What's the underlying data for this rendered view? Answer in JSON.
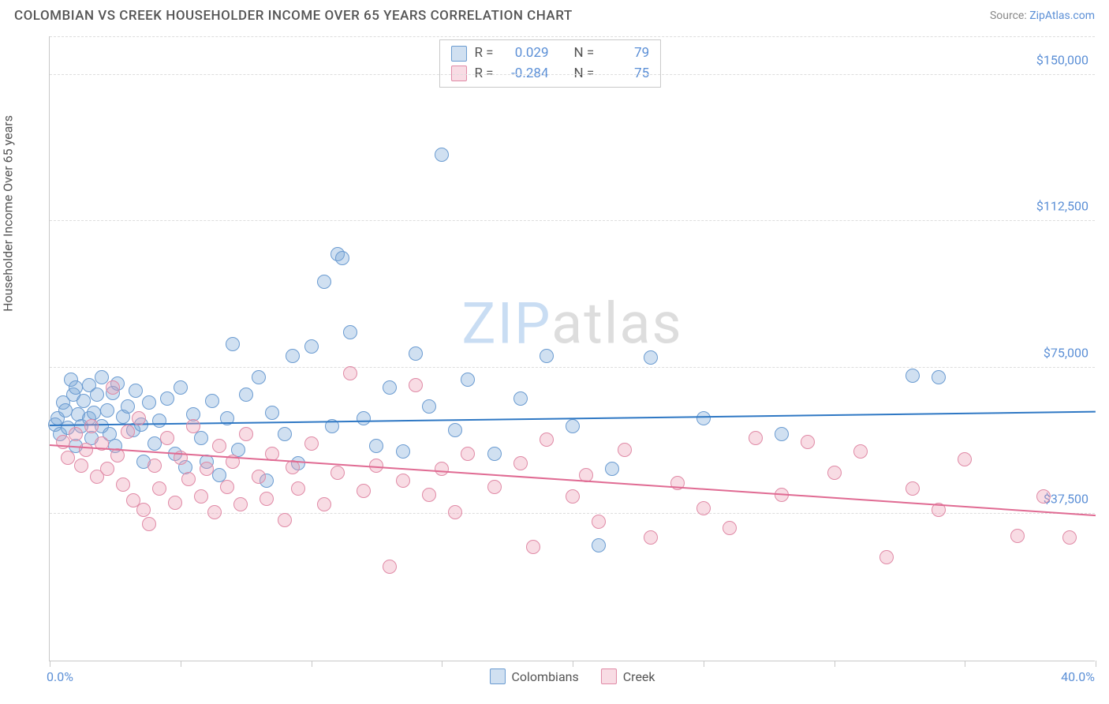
{
  "title": "COLOMBIAN VS CREEK HOUSEHOLDER INCOME OVER 65 YEARS CORRELATION CHART",
  "source_prefix": "Source: ",
  "source_link": "ZipAtlas.com",
  "ylabel": "Householder Income Over 65 years",
  "watermark_zip": "ZIP",
  "watermark_rest": "atlas",
  "chart": {
    "type": "scatter",
    "xlim": [
      0,
      40
    ],
    "ylim": [
      0,
      160000
    ],
    "x_unit": "%",
    "y_unit": "$",
    "ytick_values": [
      37500,
      75000,
      112500,
      150000
    ],
    "ytick_labels": [
      "$37,500",
      "$75,000",
      "$112,500",
      "$150,000"
    ],
    "xtick_values": [
      0,
      5,
      10,
      15,
      20,
      25,
      30,
      35,
      40
    ],
    "xlabel_min": "0.0%",
    "xlabel_max": "40.0%",
    "background_color": "#ffffff",
    "grid_color": "#dddddd",
    "axis_color": "#c8c8c8",
    "marker_radius": 9,
    "marker_stroke_width": 1.5,
    "series": [
      {
        "name": "Colombians",
        "fill": "rgba(120,165,216,0.35)",
        "stroke": "#6a9bd1",
        "trend_color": "#2f78c4",
        "trend": {
          "x0": 0,
          "y0": 60000,
          "x1": 40,
          "y1": 63500
        },
        "stats": {
          "R": "0.029",
          "N": "79"
        },
        "points": [
          [
            0.2,
            60500
          ],
          [
            0.3,
            62000
          ],
          [
            0.4,
            58000
          ],
          [
            0.5,
            66000
          ],
          [
            0.6,
            64000
          ],
          [
            0.7,
            59500
          ],
          [
            0.8,
            72000
          ],
          [
            0.9,
            68000
          ],
          [
            1.0,
            55000
          ],
          [
            1.0,
            70000
          ],
          [
            1.1,
            63000
          ],
          [
            1.2,
            60000
          ],
          [
            1.3,
            66500
          ],
          [
            1.5,
            62000
          ],
          [
            1.5,
            70500
          ],
          [
            1.6,
            57000
          ],
          [
            1.7,
            63500
          ],
          [
            1.8,
            68000
          ],
          [
            2.0,
            60000
          ],
          [
            2.0,
            72500
          ],
          [
            2.2,
            64000
          ],
          [
            2.3,
            58000
          ],
          [
            2.4,
            68500
          ],
          [
            2.5,
            55000
          ],
          [
            2.6,
            71000
          ],
          [
            2.8,
            62500
          ],
          [
            3.0,
            65000
          ],
          [
            3.2,
            59000
          ],
          [
            3.3,
            69000
          ],
          [
            3.5,
            60500
          ],
          [
            3.6,
            51000
          ],
          [
            3.8,
            66000
          ],
          [
            4.0,
            55500
          ],
          [
            4.2,
            61500
          ],
          [
            4.5,
            67000
          ],
          [
            4.8,
            53000
          ],
          [
            5.0,
            70000
          ],
          [
            5.2,
            49500
          ],
          [
            5.5,
            63000
          ],
          [
            5.8,
            57000
          ],
          [
            6.0,
            51000
          ],
          [
            6.2,
            66500
          ],
          [
            6.5,
            47500
          ],
          [
            6.8,
            62000
          ],
          [
            7.0,
            81000
          ],
          [
            7.2,
            54000
          ],
          [
            7.5,
            68000
          ],
          [
            8.0,
            72500
          ],
          [
            8.3,
            46000
          ],
          [
            8.5,
            63500
          ],
          [
            9.0,
            58000
          ],
          [
            9.3,
            78000
          ],
          [
            9.5,
            50500
          ],
          [
            10.0,
            80500
          ],
          [
            10.5,
            97000
          ],
          [
            10.8,
            60000
          ],
          [
            11.0,
            104000
          ],
          [
            11.2,
            103000
          ],
          [
            11.5,
            84000
          ],
          [
            12.0,
            62000
          ],
          [
            12.5,
            55000
          ],
          [
            13.0,
            70000
          ],
          [
            13.5,
            53500
          ],
          [
            14.0,
            78500
          ],
          [
            14.5,
            65000
          ],
          [
            15.0,
            129500
          ],
          [
            15.5,
            59000
          ],
          [
            16.0,
            72000
          ],
          [
            17.0,
            53000
          ],
          [
            18.0,
            67000
          ],
          [
            19.0,
            78000
          ],
          [
            20.0,
            60000
          ],
          [
            21.0,
            29500
          ],
          [
            21.5,
            49000
          ],
          [
            23.0,
            77500
          ],
          [
            25.0,
            62000
          ],
          [
            28.0,
            58000
          ],
          [
            33.0,
            73000
          ],
          [
            34.0,
            72500
          ]
        ]
      },
      {
        "name": "Creek",
        "fill": "rgba(236,154,178,0.35)",
        "stroke": "#e08aa6",
        "trend_color": "#e06b93",
        "trend": {
          "x0": 0,
          "y0": 55000,
          "x1": 40,
          "y1": 37000
        },
        "stats": {
          "R": "-0.284",
          "N": "75"
        },
        "points": [
          [
            0.5,
            56000
          ],
          [
            0.7,
            52000
          ],
          [
            1.0,
            58000
          ],
          [
            1.2,
            50000
          ],
          [
            1.4,
            54000
          ],
          [
            1.6,
            60000
          ],
          [
            1.8,
            47000
          ],
          [
            2.0,
            55500
          ],
          [
            2.2,
            49000
          ],
          [
            2.4,
            70000
          ],
          [
            2.6,
            52500
          ],
          [
            2.8,
            45000
          ],
          [
            3.0,
            58500
          ],
          [
            3.2,
            41000
          ],
          [
            3.4,
            62000
          ],
          [
            3.6,
            38500
          ],
          [
            3.8,
            35000
          ],
          [
            4.0,
            50000
          ],
          [
            4.2,
            44000
          ],
          [
            4.5,
            57000
          ],
          [
            4.8,
            40500
          ],
          [
            5.0,
            52000
          ],
          [
            5.3,
            46500
          ],
          [
            5.5,
            60000
          ],
          [
            5.8,
            42000
          ],
          [
            6.0,
            49000
          ],
          [
            6.3,
            38000
          ],
          [
            6.5,
            55000
          ],
          [
            6.8,
            44500
          ],
          [
            7.0,
            51000
          ],
          [
            7.3,
            40000
          ],
          [
            7.5,
            58000
          ],
          [
            8.0,
            47000
          ],
          [
            8.3,
            41500
          ],
          [
            8.5,
            53000
          ],
          [
            9.0,
            36000
          ],
          [
            9.3,
            49500
          ],
          [
            9.5,
            44000
          ],
          [
            10.0,
            55500
          ],
          [
            10.5,
            40000
          ],
          [
            11.0,
            48000
          ],
          [
            11.5,
            73500
          ],
          [
            12.0,
            43500
          ],
          [
            12.5,
            50000
          ],
          [
            13.0,
            24000
          ],
          [
            13.5,
            46000
          ],
          [
            14.0,
            70500
          ],
          [
            14.5,
            42500
          ],
          [
            15.0,
            49000
          ],
          [
            15.5,
            38000
          ],
          [
            16.0,
            53000
          ],
          [
            17.0,
            44500
          ],
          [
            18.0,
            50500
          ],
          [
            18.5,
            29000
          ],
          [
            19.0,
            56500
          ],
          [
            20.0,
            42000
          ],
          [
            20.5,
            47500
          ],
          [
            21.0,
            35500
          ],
          [
            22.0,
            54000
          ],
          [
            23.0,
            31500
          ],
          [
            24.0,
            45500
          ],
          [
            25.0,
            39000
          ],
          [
            26.0,
            34000
          ],
          [
            27.0,
            57000
          ],
          [
            28.0,
            42500
          ],
          [
            29.0,
            56000
          ],
          [
            30.0,
            48000
          ],
          [
            31.0,
            53500
          ],
          [
            32.0,
            26500
          ],
          [
            33.0,
            44000
          ],
          [
            34.0,
            38500
          ],
          [
            35.0,
            51500
          ],
          [
            37.0,
            32000
          ],
          [
            38.0,
            42000
          ],
          [
            39.0,
            31500
          ]
        ]
      }
    ]
  },
  "stats_labels": {
    "R": "R =",
    "N": "N ="
  },
  "legend_series": [
    "Colombians",
    "Creek"
  ]
}
